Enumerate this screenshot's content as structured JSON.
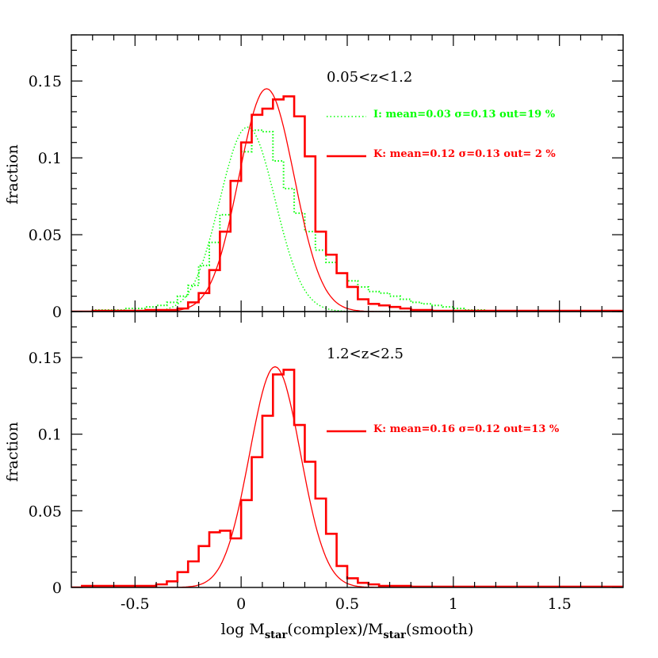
{
  "xlabel_parts": [
    "log M",
    "star",
    "(complex)/M",
    "star",
    "(smooth)"
  ],
  "colors": {
    "I": "#00ff00",
    "K": "#ff0000",
    "axis": "#000000"
  },
  "chart_data": [
    {
      "type": "histogram",
      "panel": "top",
      "annotation": "0.05<z<1.2",
      "ylabel": "fraction",
      "xlim": [
        -0.8,
        1.8
      ],
      "ylim": [
        0,
        0.18
      ],
      "xticks": [
        "-0.5",
        "0",
        "0.5",
        "1",
        "1.5"
      ],
      "yticks": [
        "0",
        "0.05",
        "0.1",
        "0.15"
      ],
      "ytick_values": [
        0,
        0.05,
        0.1,
        0.15
      ],
      "xtick_values": [
        -0.5,
        0,
        0.5,
        1,
        1.5
      ],
      "bin_edges_start": -0.8,
      "bin_width": 0.05,
      "series": [
        {
          "key": "I",
          "style": "dotted",
          "legend": "I: mean=0.03 σ=0.13 out=19 %",
          "bin_left": [
            -0.7,
            -0.65,
            -0.6,
            -0.55,
            -0.5,
            -0.45,
            -0.4,
            -0.35,
            -0.3,
            -0.25,
            -0.2,
            -0.15,
            -0.1,
            -0.05,
            0,
            0.05,
            0.1,
            0.15,
            0.2,
            0.25,
            0.3,
            0.35,
            0.4,
            0.45,
            0.5,
            0.55,
            0.6,
            0.65,
            0.7,
            0.75,
            0.8,
            0.85,
            0.9,
            0.95,
            1.0,
            1.05,
            1.1
          ],
          "values": [
            0.001,
            0.001,
            0.001,
            0.002,
            0.002,
            0.003,
            0.004,
            0.006,
            0.01,
            0.017,
            0.03,
            0.045,
            0.063,
            0.085,
            0.104,
            0.118,
            0.117,
            0.098,
            0.08,
            0.064,
            0.052,
            0.04,
            0.032,
            0.025,
            0.02,
            0.016,
            0.013,
            0.012,
            0.01,
            0.008,
            0.006,
            0.005,
            0.004,
            0.003,
            0.002,
            0.001,
            0.001
          ],
          "gaussian": {
            "mean": 0.03,
            "sigma": 0.13,
            "peak": 0.12
          }
        },
        {
          "key": "K",
          "style": "solid",
          "legend": "K: mean=0.12 σ=0.13 out= 2 %",
          "bin_left": [
            -0.7,
            -0.65,
            -0.6,
            -0.55,
            -0.5,
            -0.45,
            -0.4,
            -0.35,
            -0.3,
            -0.25,
            -0.2,
            -0.15,
            -0.1,
            -0.05,
            0,
            0.05,
            0.1,
            0.15,
            0.2,
            0.25,
            0.3,
            0.35,
            0.4,
            0.45,
            0.5,
            0.55,
            0.6,
            0.65,
            0.7,
            0.75,
            0.8,
            0.85,
            0.9,
            0.95,
            1.0
          ],
          "values": [
            0.0005,
            0.0005,
            0.0005,
            0.0005,
            0.0005,
            0.001,
            0.001,
            0.001,
            0.002,
            0.006,
            0.012,
            0.027,
            0.052,
            0.085,
            0.11,
            0.128,
            0.132,
            0.138,
            0.14,
            0.127,
            0.101,
            0.052,
            0.037,
            0.025,
            0.016,
            0.008,
            0.005,
            0.004,
            0.003,
            0.002,
            0.001,
            0.001,
            0.0005,
            0.0005,
            0.0005
          ],
          "gaussian": {
            "mean": 0.12,
            "sigma": 0.13,
            "peak": 0.145
          }
        }
      ]
    },
    {
      "type": "histogram",
      "panel": "bottom",
      "annotation": "1.2<z<2.5",
      "ylabel": "fraction",
      "xlim": [
        -0.8,
        1.8
      ],
      "ylim": [
        0,
        0.18
      ],
      "xticks": [
        "-0.5",
        "0",
        "0.5",
        "1",
        "1.5"
      ],
      "yticks": [
        "0",
        "0.05",
        "0.1",
        "0.15"
      ],
      "ytick_values": [
        0,
        0.05,
        0.1,
        0.15
      ],
      "xtick_values": [
        -0.5,
        0,
        0.5,
        1,
        1.5
      ],
      "bin_edges_start": -0.8,
      "bin_width": 0.05,
      "series": [
        {
          "key": "K",
          "style": "solid",
          "legend": "K: mean=0.16 σ=0.12 out=13 %",
          "bin_left": [
            -0.75,
            -0.7,
            -0.65,
            -0.6,
            -0.55,
            -0.5,
            -0.45,
            -0.4,
            -0.35,
            -0.3,
            -0.25,
            -0.2,
            -0.15,
            -0.1,
            -0.05,
            0,
            0.05,
            0.1,
            0.15,
            0.2,
            0.25,
            0.3,
            0.35,
            0.4,
            0.45,
            0.5,
            0.55,
            0.6,
            0.65,
            0.7,
            0.75
          ],
          "values": [
            0.001,
            0.001,
            0.001,
            0.001,
            0.001,
            0.001,
            0.001,
            0.002,
            0.004,
            0.01,
            0.017,
            0.027,
            0.036,
            0.037,
            0.032,
            0.057,
            0.085,
            0.112,
            0.139,
            0.142,
            0.106,
            0.082,
            0.058,
            0.035,
            0.014,
            0.006,
            0.003,
            0.002,
            0.001,
            0.001,
            0.001
          ],
          "gaussian": {
            "mean": 0.16,
            "sigma": 0.12,
            "peak": 0.144
          }
        }
      ]
    }
  ]
}
